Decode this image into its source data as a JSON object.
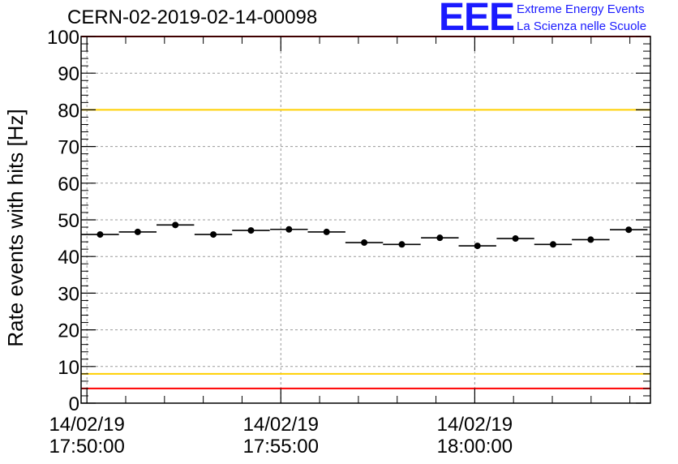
{
  "header": {
    "title": "CERN-02-2019-02-14-00098"
  },
  "logo": {
    "mark": "EEE",
    "line1": "Extreme Energy Events",
    "line2": "La Scienza nelle Scuole",
    "color": "#1a1aff"
  },
  "chart_data": {
    "type": "scatter",
    "ylabel": "Rate events with hits [Hz]",
    "xlabel": "",
    "ylim": [
      0,
      100
    ],
    "xlim_minutes": [
      -0.15,
      14.53
    ],
    "y_ticks": [
      0,
      10,
      20,
      30,
      40,
      50,
      60,
      70,
      80,
      90,
      100
    ],
    "x_ticks": [
      {
        "minute": 0,
        "date": "14/02/19",
        "time": "17:50:00"
      },
      {
        "minute": 5,
        "date": "14/02/19",
        "time": "17:55:00"
      },
      {
        "minute": 10,
        "date": "14/02/19",
        "time": "18:00:00"
      }
    ],
    "grid": true,
    "x_start_time": "17:50:00",
    "bin_width_minutes": 0.97,
    "series": [
      {
        "marker": "circle",
        "color": "#000000",
        "x_minutes": [
          0.34,
          1.31,
          2.28,
          3.26,
          4.23,
          5.21,
          6.18,
          7.15,
          8.12,
          9.1,
          10.07,
          11.05,
          12.02,
          12.99,
          13.97
        ],
        "values": [
          46.0,
          46.7,
          48.6,
          46.0,
          47.1,
          47.4,
          46.7,
          43.8,
          43.3,
          45.1,
          42.9,
          44.9,
          43.3,
          44.6,
          47.3
        ]
      }
    ],
    "reference_lines": [
      {
        "y": 100,
        "color": "#ff0000"
      },
      {
        "y": 80,
        "color": "#ffd000"
      },
      {
        "y": 8,
        "color": "#ffd000"
      },
      {
        "y": 4,
        "color": "#ff0000"
      }
    ]
  }
}
